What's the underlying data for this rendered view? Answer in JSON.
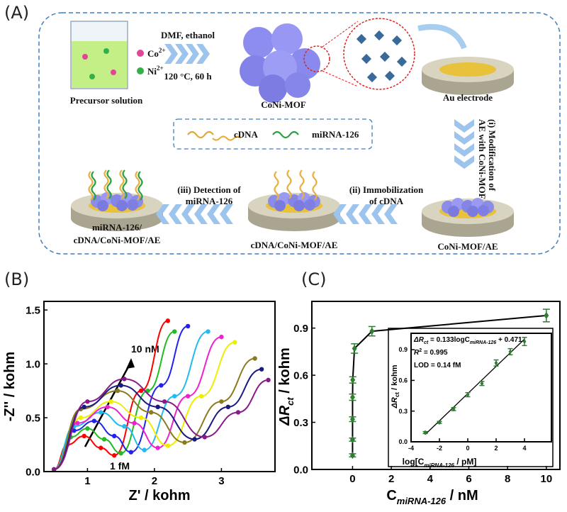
{
  "panel_a": {
    "label": "(A)",
    "ions": [
      [
        "Co",
        "2+"
      ],
      [
        "Ni",
        "2+"
      ]
    ],
    "precursor": "Precursor solution",
    "conditions": [
      "DMF, ethanol",
      "120 °C, 60 h"
    ],
    "mof": "CoNi-MOF",
    "electrode": "Au electrode",
    "step1": [
      "(i) Modification of",
      "AE with CoNi-MOF"
    ],
    "legend": [
      "cDNA",
      "miRNA-126"
    ],
    "step2": [
      "(ii) Immobilization",
      "of cDNA"
    ],
    "step3": [
      "(iii) Detection of",
      "miRNA-126"
    ],
    "products": [
      [
        "miRNA-126/",
        "cDNA/CoNi-MOF/AE"
      ],
      "cDNA/CoNi-MOF/AE",
      "CoNi-MOF/AE"
    ]
  },
  "chart_data": [
    {
      "type": "line",
      "panel": "(B)",
      "x_label": "Z' / kohm",
      "y_label": "-Z'' / kohm",
      "annotations": [
        "10 nM",
        "1 fM"
      ],
      "xlim": [
        0.35,
        3.8
      ],
      "ylim": [
        0,
        1.58
      ],
      "xticks": [
        1,
        2,
        3
      ],
      "yticks": [
        {
          "value": 0,
          "label": "0.0"
        },
        0.5,
        {
          "value": 1,
          "label": "1.0"
        },
        1.5
      ],
      "series": [
        {
          "color": "#ff0000",
          "x": [
            0.5,
            0.7,
            0.95,
            1.2,
            1.4,
            1.8,
            2.2
          ],
          "values": [
            0.02,
            0.25,
            0.33,
            0.22,
            0.15,
            0.75,
            1.4
          ]
        },
        {
          "color": "#22bb22",
          "x": [
            0.5,
            0.75,
            1.0,
            1.25,
            1.5,
            1.9,
            2.3
          ],
          "values": [
            0.02,
            0.32,
            0.4,
            0.3,
            0.17,
            0.75,
            1.3
          ]
        },
        {
          "color": "#2222ee",
          "x": [
            0.5,
            0.8,
            1.1,
            1.4,
            1.65,
            2.1,
            2.5
          ],
          "values": [
            0.02,
            0.38,
            0.47,
            0.33,
            0.18,
            0.8,
            1.35
          ]
        },
        {
          "color": "#22bbee",
          "x": [
            0.5,
            0.8,
            1.2,
            1.55,
            1.85,
            2.3,
            2.8
          ],
          "values": [
            0.02,
            0.42,
            0.55,
            0.42,
            0.2,
            0.7,
            1.3
          ]
        },
        {
          "color": "#ee22cc",
          "x": [
            0.5,
            0.85,
            1.3,
            1.7,
            2.05,
            2.5,
            3.0
          ],
          "values": [
            0.02,
            0.45,
            0.6,
            0.45,
            0.22,
            0.7,
            1.25
          ]
        },
        {
          "color": "#eeee00",
          "x": [
            0.5,
            0.9,
            1.35,
            1.8,
            2.2,
            2.7,
            3.2
          ],
          "values": [
            0.02,
            0.5,
            0.65,
            0.5,
            0.24,
            0.7,
            1.2
          ]
        },
        {
          "color": "#8a7a20",
          "x": [
            0.5,
            0.9,
            1.45,
            1.95,
            2.45,
            3.0,
            3.5
          ],
          "values": [
            0.02,
            0.58,
            0.75,
            0.55,
            0.27,
            0.65,
            1.05
          ]
        },
        {
          "color": "#1a1a80",
          "x": [
            0.5,
            0.95,
            1.5,
            2.05,
            2.6,
            3.1,
            3.6
          ],
          "values": [
            0.02,
            0.6,
            0.8,
            0.6,
            0.3,
            0.6,
            0.95
          ]
        },
        {
          "color": "#8a1a8a",
          "x": [
            0.5,
            1.0,
            1.55,
            2.15,
            2.75,
            3.25,
            3.7
          ],
          "values": [
            0.02,
            0.65,
            0.86,
            0.65,
            0.32,
            0.55,
            0.85
          ]
        }
      ]
    },
    {
      "type": "scatter",
      "panel": "(C)",
      "x_label": [
        "C",
        "miRNA-126",
        " / nM"
      ],
      "y_label": [
        "ΔR",
        "ct",
        " / kohm"
      ],
      "xlim": [
        -2.1,
        10.7
      ],
      "ylim": [
        0,
        1.07
      ],
      "xticks": [
        0,
        2,
        4,
        6,
        8,
        10
      ],
      "yticks": [
        {
          "value": 0,
          "label": "0.0"
        },
        0.3,
        0.6,
        0.9
      ],
      "color": "#2e7d32",
      "x": [
        1e-06,
        1e-05,
        0.0001,
        0.001,
        0.01,
        0.1,
        1,
        10
      ],
      "values": [
        0.09,
        0.19,
        0.32,
        0.46,
        0.57,
        0.77,
        0.88,
        0.98
      ],
      "errors": [
        0.01,
        0.01,
        0.015,
        0.02,
        0.02,
        0.03,
        0.03,
        0.04
      ],
      "inset": {
        "x_label": [
          "log[C",
          "miRNA-126",
          " / pM]"
        ],
        "y_label": [
          "ΔR",
          "ct",
          " / kohm"
        ],
        "equation": [
          "ΔR",
          "ct",
          " = 0.133logC",
          "miRNA-126",
          " + 0.471"
        ],
        "r2": [
          "R",
          "2",
          " = 0.995"
        ],
        "lod": "LOD = 0.14 fM",
        "fit": {
          "slope": 0.133,
          "intercept": 0.471
        },
        "xlim": [
          -4,
          5.9
        ],
        "ylim": [
          0,
          1.06
        ],
        "xticks": [
          -4,
          -2,
          0,
          2,
          4
        ],
        "yticks": [
          {
            "value": 0,
            "label": "0.0"
          },
          0.3,
          0.6,
          0.9
        ],
        "x": [
          -3,
          -2,
          -1,
          0,
          1,
          2,
          3,
          4
        ],
        "values": [
          0.09,
          0.19,
          0.32,
          0.46,
          0.57,
          0.77,
          0.88,
          0.98
        ],
        "errors": [
          0.01,
          0.01,
          0.015,
          0.02,
          0.02,
          0.03,
          0.03,
          0.04
        ]
      }
    }
  ]
}
